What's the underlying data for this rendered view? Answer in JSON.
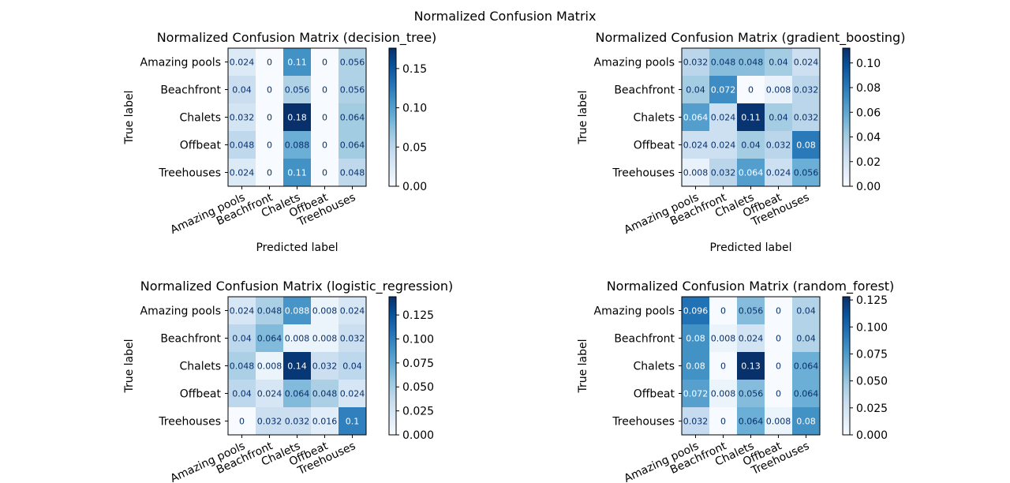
{
  "suptitle": "Normalized Confusion Matrix",
  "colors": {
    "cmap_low": "#f7fbff",
    "cmap_mid": "#6baed6",
    "cmap_high": "#08306b"
  },
  "chart_data": [
    {
      "type": "heatmap",
      "title": "Normalized Confusion Matrix (decision_tree)",
      "xlabel": "Predicted label",
      "ylabel": "True label",
      "classes": [
        "Amazing pools",
        "Beachfront",
        "Chalets",
        "Offbeat",
        "Treehouses"
      ],
      "values": [
        [
          0.024,
          0,
          0.11,
          0,
          0.056
        ],
        [
          0.04,
          0,
          0.056,
          0,
          0.056
        ],
        [
          0.032,
          0,
          0.18,
          0,
          0.064
        ],
        [
          0.048,
          0,
          0.088,
          0,
          0.064
        ],
        [
          0.024,
          0,
          0.11,
          0,
          0.048
        ]
      ],
      "colorbar": {
        "vmin": 0,
        "vmax": 0.176,
        "ticks": [
          "0.00",
          "0.05",
          "0.10",
          "0.15"
        ],
        "tick_values": [
          0,
          0.05,
          0.1,
          0.15
        ]
      }
    },
    {
      "type": "heatmap",
      "title": "Normalized Confusion Matrix (gradient_boosting)",
      "xlabel": "Predicted label",
      "ylabel": "True label",
      "classes": [
        "Amazing pools",
        "Beachfront",
        "Chalets",
        "Offbeat",
        "Treehouses"
      ],
      "values": [
        [
          0.032,
          0.048,
          0.048,
          0.04,
          0.024
        ],
        [
          0.04,
          0.072,
          0,
          0.008,
          0.032
        ],
        [
          0.064,
          0.024,
          0.11,
          0.04,
          0.032
        ],
        [
          0.024,
          0.024,
          0.04,
          0.032,
          0.08
        ],
        [
          0.008,
          0.032,
          0.064,
          0.024,
          0.056
        ]
      ],
      "colorbar": {
        "vmin": 0,
        "vmax": 0.112,
        "ticks": [
          "0.00",
          "0.02",
          "0.04",
          "0.06",
          "0.08",
          "0.10"
        ],
        "tick_values": [
          0,
          0.02,
          0.04,
          0.06,
          0.08,
          0.1
        ]
      }
    },
    {
      "type": "heatmap",
      "title": "Normalized Confusion Matrix (logistic_regression)",
      "xlabel": "",
      "ylabel": "True label",
      "classes": [
        "Amazing pools",
        "Beachfront",
        "Chalets",
        "Offbeat",
        "Treehouses"
      ],
      "values": [
        [
          0.024,
          0.048,
          0.088,
          0.008,
          0.024
        ],
        [
          0.04,
          0.064,
          0.008,
          0.008,
          0.032
        ],
        [
          0.048,
          0.008,
          0.14,
          0.032,
          0.04
        ],
        [
          0.04,
          0.024,
          0.064,
          0.048,
          0.024
        ],
        [
          0,
          0.032,
          0.032,
          0.016,
          0.1
        ]
      ],
      "colorbar": {
        "vmin": 0,
        "vmax": 0.144,
        "ticks": [
          "0.000",
          "0.025",
          "0.050",
          "0.075",
          "0.100",
          "0.125"
        ],
        "tick_values": [
          0,
          0.025,
          0.05,
          0.075,
          0.1,
          0.125
        ]
      }
    },
    {
      "type": "heatmap",
      "title": "Normalized Confusion Matrix (random_forest)",
      "xlabel": "",
      "ylabel": "True label",
      "classes": [
        "Amazing pools",
        "Beachfront",
        "Chalets",
        "Offbeat",
        "Treehouses"
      ],
      "values": [
        [
          0.096,
          0,
          0.056,
          0,
          0.04
        ],
        [
          0.08,
          0.008,
          0.024,
          0,
          0.04
        ],
        [
          0.08,
          0,
          0.13,
          0,
          0.064
        ],
        [
          0.072,
          0.008,
          0.056,
          0,
          0.064
        ],
        [
          0.032,
          0,
          0.064,
          0.008,
          0.08
        ]
      ],
      "colorbar": {
        "vmin": 0,
        "vmax": 0.128,
        "ticks": [
          "0.000",
          "0.025",
          "0.050",
          "0.075",
          "0.100",
          "0.125"
        ],
        "tick_values": [
          0,
          0.025,
          0.05,
          0.075,
          0.1,
          0.125
        ]
      }
    }
  ]
}
